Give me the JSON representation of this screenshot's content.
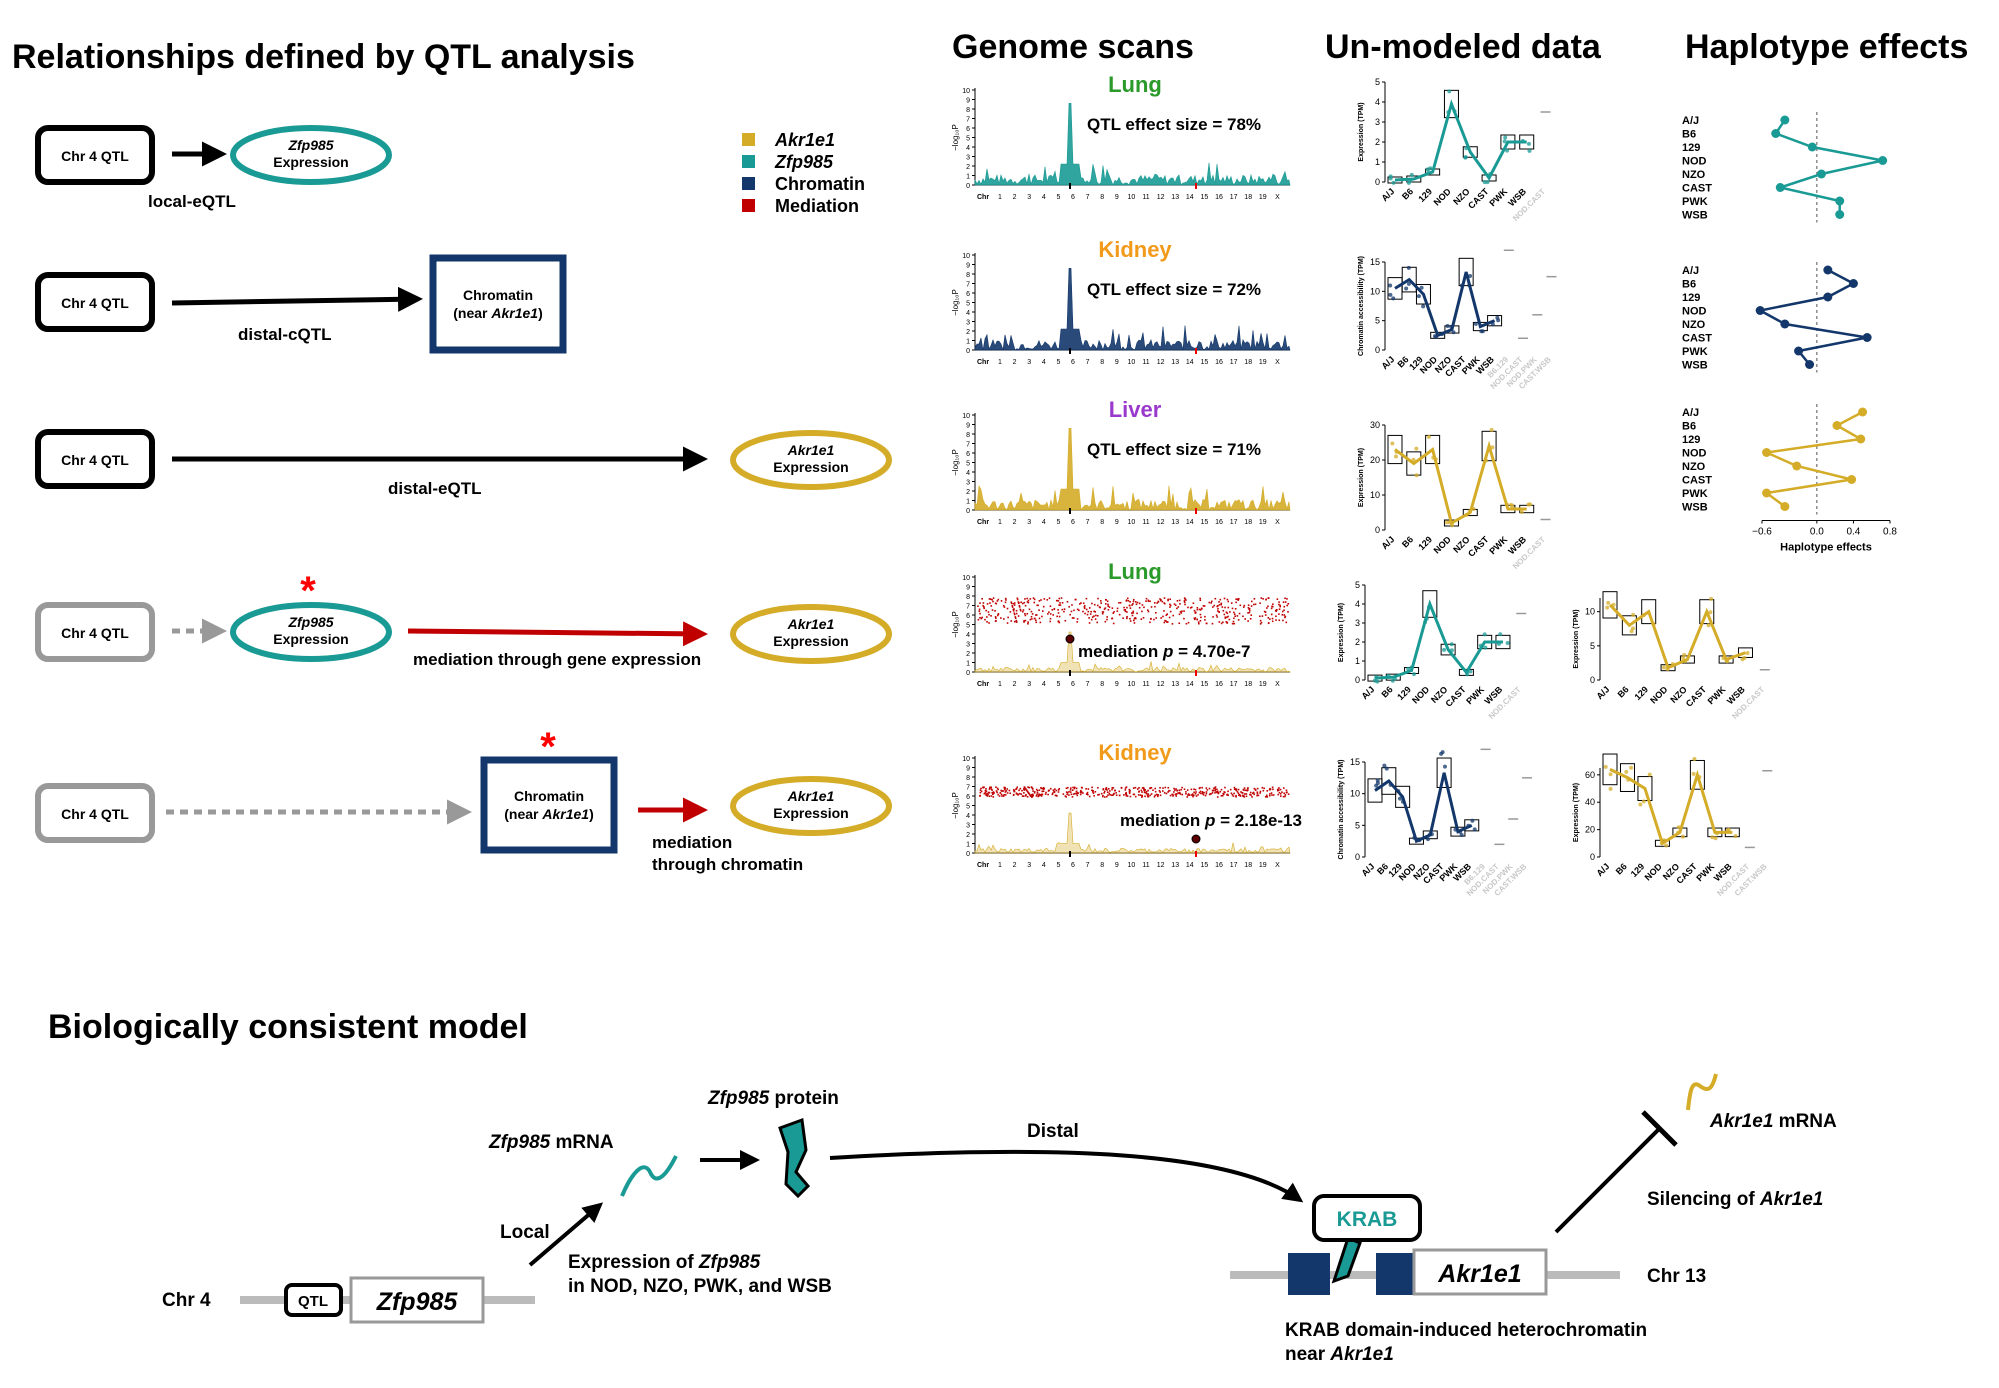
{
  "headers": {
    "relationships": "Relationships defined by QTL analysis",
    "genome_scans": "Genome scans",
    "unmodeled": "Un-modeled data",
    "haplotype": "Haplotype effects",
    "model": "Biologically consistent model"
  },
  "colors": {
    "akr1e1": "#d4ac28",
    "zfp985": "#1a9a94",
    "chromatin": "#13376a",
    "mediation": "#c00000",
    "lung": "#2a9a2a",
    "kidney": "#f29a1a",
    "liver": "#9a3acd",
    "grey": "#999999"
  },
  "legend": [
    {
      "label": "Akr1e1",
      "italic": true,
      "color": "#d4ac28"
    },
    {
      "label": "Zfp985",
      "italic": true,
      "color": "#1a9a94"
    },
    {
      "label": "Chromatin",
      "italic": false,
      "color": "#13376a"
    },
    {
      "label": "Mediation",
      "italic": false,
      "color": "#c00000"
    }
  ],
  "relations": [
    {
      "qtl": "Chr 4 QTL",
      "target_gene": "Zfp985",
      "target_word": "Expression",
      "label": "local-eQTL"
    },
    {
      "qtl": "Chr 4 QTL",
      "target_line1": "Chromatin",
      "target_line2a": "(near ",
      "target_gene": "Akr1e1",
      "target_line2b": ")",
      "label": "distal-cQTL"
    },
    {
      "qtl": "Chr 4 QTL",
      "target_gene": "Akr1e1",
      "target_word": "Expression",
      "label": "distal-eQTL"
    },
    {
      "qtl": "Chr 4 QTL",
      "mediator_gene": "Zfp985",
      "mediator_word": "Expression",
      "target_gene": "Akr1e1",
      "target_word": "Expression",
      "label": "mediation through gene expression"
    },
    {
      "qtl": "Chr 4 QTL",
      "mediator_line1": "Chromatin",
      "mediator_line2a": "(near ",
      "mediator_gene": "Akr1e1",
      "mediator_line2b": ")",
      "target_gene": "Akr1e1",
      "target_word": "Expression",
      "label_line1": "mediation",
      "label_line2": "through chromatin"
    }
  ],
  "asterisk": "*",
  "scan_axis": {
    "ylabel": "−log₁₀P",
    "xlabel": "Chr",
    "chromosomes": [
      "1",
      "2",
      "3",
      "4",
      "5",
      "6",
      "7",
      "8",
      "9",
      "10",
      "11",
      "12",
      "13",
      "14",
      "15",
      "16",
      "17",
      "18",
      "19",
      "X"
    ],
    "yticks": [
      "0",
      "1",
      "2",
      "3",
      "4",
      "5",
      "6",
      "7",
      "8",
      "9",
      "10"
    ]
  },
  "scans": [
    {
      "tissue": "Lung",
      "annotation": "QTL effect size = 78%"
    },
    {
      "tissue": "Kidney",
      "annotation": "QTL effect size = 72%"
    },
    {
      "tissue": "Liver",
      "annotation": "QTL effect size = 71%"
    },
    {
      "tissue": "Lung",
      "annotation_prefix": "mediation ",
      "annotation_p": "p",
      "annotation_suffix": " = 4.70e-7"
    },
    {
      "tissue": "Kidney",
      "annotation_prefix": "mediation ",
      "annotation_p": "p",
      "annotation_suffix": " = 2.18e-13"
    }
  ],
  "strains": [
    "A/J",
    "B6",
    "129",
    "NOD",
    "NZO",
    "CAST",
    "PWK",
    "WSB"
  ],
  "chart_data": [
    {
      "type": "box",
      "panel": "Lung Zfp985",
      "ylabel": "Expression (TPM)",
      "ylim": [
        0,
        5
      ],
      "yticks": [
        0,
        1,
        2,
        3,
        4,
        5
      ],
      "categories": [
        "A/J",
        "B6",
        "129",
        "NOD",
        "NZO",
        "CAST",
        "PWK",
        "WSB"
      ],
      "values": [
        0.1,
        0.15,
        0.5,
        3.9,
        1.5,
        0.2,
        2.0,
        2.0
      ],
      "extra_labels": [
        "NOD.CAST"
      ],
      "extra_values": [
        3.5
      ]
    },
    {
      "type": "box",
      "panel": "Kidney chromatin",
      "ylabel": "Chromatin accessibility (TPM)",
      "ylim": [
        0,
        15
      ],
      "yticks": [
        0,
        5,
        10,
        15
      ],
      "categories": [
        "A/J",
        "B6",
        "129",
        "NOD",
        "NZO",
        "CAST",
        "PWK",
        "WSB"
      ],
      "values": [
        10.5,
        12,
        9.5,
        2.5,
        3.5,
        13.3,
        4,
        5
      ],
      "extra_labels": [
        "B6.129",
        "NOD.CAST",
        "NOD.PWK",
        "CAST.WSB"
      ],
      "extra_values": [
        17,
        2,
        6,
        12.5
      ]
    },
    {
      "type": "box",
      "panel": "Liver Akr1e1",
      "ylabel": "Expression (TPM)",
      "ylim": [
        0,
        30
      ],
      "yticks": [
        0,
        10,
        20,
        30
      ],
      "categories": [
        "A/J",
        "B6",
        "129",
        "NOD",
        "NZO",
        "CAST",
        "PWK",
        "WSB"
      ],
      "values": [
        23,
        19,
        23,
        2,
        5,
        24,
        6,
        6
      ],
      "extra_labels": [
        "NOD.CAST"
      ],
      "extra_values": [
        3
      ]
    },
    {
      "type": "box",
      "panel": "Lung Zfp985 (mediation)",
      "ylabel": "Expression (TPM)",
      "ylim": [
        0,
        5
      ],
      "yticks": [
        0,
        1,
        2,
        3,
        4,
        5
      ],
      "categories": [
        "A/J",
        "B6",
        "129",
        "NOD",
        "NZO",
        "CAST",
        "PWK",
        "WSB"
      ],
      "values": [
        0.1,
        0.15,
        0.5,
        4.0,
        1.6,
        0.4,
        2.0,
        2.0
      ],
      "extra_labels": [
        "NOD.CAST"
      ],
      "extra_values": [
        3.5
      ]
    },
    {
      "type": "box",
      "panel": "Lung Akr1e1 (mediation)",
      "ylabel": "Expression (TPM)",
      "ylim": [
        0,
        12
      ],
      "yticks": [
        0,
        5,
        10
      ],
      "categories": [
        "A/J",
        "B6",
        "129",
        "NOD",
        "NZO",
        "CAST",
        "PWK",
        "WSB"
      ],
      "values": [
        11,
        8,
        10,
        1.8,
        3,
        10,
        3,
        4
      ],
      "extra_labels": [
        "NOD.CAST"
      ],
      "extra_values": [
        1.5
      ]
    },
    {
      "type": "box",
      "panel": "Kidney chromatin (mediation)",
      "ylabel": "Chromatin accessibility (TPM)",
      "ylim": [
        0,
        15
      ],
      "yticks": [
        0,
        5,
        10,
        15
      ],
      "categories": [
        "A/J",
        "B6",
        "129",
        "NOD",
        "NZO",
        "CAST",
        "PWK",
        "WSB"
      ],
      "values": [
        10.5,
        12,
        9.5,
        2.5,
        3.5,
        13.3,
        4,
        5
      ],
      "extra_labels": [
        "B6.129",
        "NOD.CAST",
        "NOD.PWK",
        "CAST.WSB"
      ],
      "extra_values": [
        17,
        2,
        6,
        12.5
      ]
    },
    {
      "type": "box",
      "panel": "Kidney Akr1e1 (mediation)",
      "ylabel": "Expression (TPM)",
      "ylim": [
        0,
        65
      ],
      "yticks": [
        0,
        20,
        40,
        60
      ],
      "categories": [
        "A/J",
        "B6",
        "129",
        "NOD",
        "NZO",
        "CAST",
        "PWK",
        "WSB"
      ],
      "values": [
        64,
        58,
        50,
        10,
        18,
        60,
        18,
        18
      ],
      "extra_labels": [
        "NOD.CAST",
        "CAST.WSB"
      ],
      "extra_values": [
        7,
        63
      ]
    },
    {
      "type": "line",
      "panel": "Haplotype effects Zfp985",
      "categories": [
        "A/J",
        "B6",
        "129",
        "NOD",
        "NZO",
        "CAST",
        "PWK",
        "WSB"
      ],
      "values": [
        -0.35,
        -0.45,
        -0.05,
        0.72,
        0.05,
        -0.4,
        0.25,
        0.25
      ]
    },
    {
      "type": "line",
      "panel": "Haplotype effects Chromatin",
      "categories": [
        "A/J",
        "B6",
        "129",
        "NOD",
        "NZO",
        "CAST",
        "PWK",
        "WSB"
      ],
      "values": [
        0.12,
        0.4,
        0.12,
        -0.62,
        -0.35,
        0.55,
        -0.2,
        -0.08
      ]
    },
    {
      "type": "line",
      "panel": "Haplotype effects Akr1e1",
      "categories": [
        "A/J",
        "B6",
        "129",
        "NOD",
        "NZO",
        "CAST",
        "PWK",
        "WSB"
      ],
      "values": [
        0.5,
        0.22,
        0.48,
        -0.55,
        -0.22,
        0.38,
        -0.55,
        -0.35
      ],
      "xticks": [
        "−0.6",
        "0.0",
        "0.4",
        "0.8"
      ],
      "xlabel": "Haplotype effects",
      "xlim": [
        -0.6,
        0.8
      ]
    }
  ],
  "model": {
    "chr4": "Chr 4",
    "qtl": "QTL",
    "gene": "Zfp985",
    "local": "Local",
    "mrna_gene": "Zfp985",
    "mrna_word": " mRNA",
    "protein_gene": "Zfp985",
    "protein_word": " protein",
    "expr_line1a": "Expression of ",
    "expr_gene": "Zfp985",
    "expr_line2": "in NOD, NZO, PWK, and WSB",
    "distal": "Distal",
    "krab": "KRAB",
    "target": "Akr1e1",
    "chr13": "Chr 13",
    "silencing_a": "Silencing of ",
    "silencing_gene": "Akr1e1",
    "akr_mrna_gene": "Akr1e1",
    "akr_mrna_word": " mRNA",
    "hetero_line1": "KRAB domain-induced heterochromatin",
    "hetero_line2a": "near ",
    "hetero_gene": "Akr1e1"
  }
}
